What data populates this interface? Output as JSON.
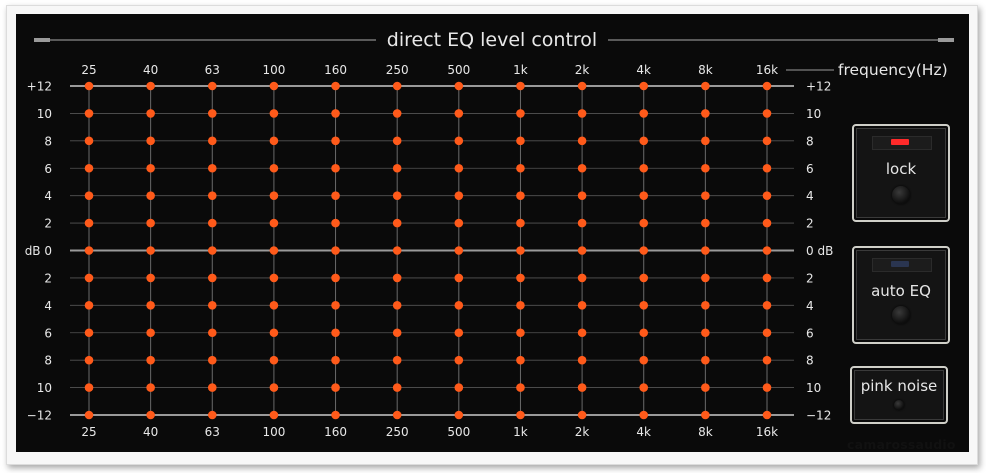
{
  "header": {
    "title": "direct EQ level control",
    "axis_caption": "frequency(Hz)"
  },
  "frequencies": [
    "25",
    "40",
    "63",
    "100",
    "160",
    "250",
    "500",
    "1k",
    "2k",
    "4k",
    "8k",
    "16k"
  ],
  "db_scale_left": [
    "+12",
    "10",
    "8",
    "6",
    "4",
    "2",
    "dB 0",
    "2",
    "4",
    "6",
    "8",
    "10",
    "−12"
  ],
  "db_scale_right": [
    "+12",
    "10",
    "8",
    "6",
    "4",
    "2",
    "0 dB",
    "2",
    "4",
    "6",
    "8",
    "10",
    "−12"
  ],
  "eq_bands": {
    "levels_db": [
      12,
      12,
      12,
      12,
      12,
      12,
      12,
      12,
      12,
      12,
      12,
      12
    ],
    "range_db": [
      -12,
      12
    ],
    "step_db": 2
  },
  "buttons": {
    "lock": {
      "label": "lock",
      "indicator_color": "#ff2a2a"
    },
    "auto_eq": {
      "label": "auto EQ",
      "indicator_color": "#2a3550"
    },
    "pink_noise": {
      "label": "pink noise"
    }
  },
  "colors": {
    "led": "#ff5a1a",
    "panel": "#0a0a0a",
    "text": "#e8e8e8"
  },
  "watermark": "camarossaudio"
}
